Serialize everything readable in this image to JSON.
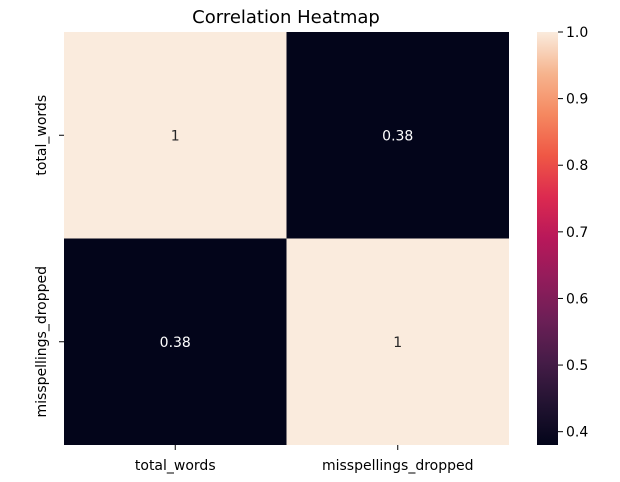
{
  "chart_data": {
    "type": "heatmap",
    "title": "Correlation Heatmap",
    "x_categories": [
      "total_words",
      "misspellings_dropped"
    ],
    "y_categories": [
      "total_words",
      "misspellings_dropped"
    ],
    "values": [
      [
        1,
        0.38
      ],
      [
        0.38,
        1
      ]
    ],
    "annotations": [
      [
        "1",
        "0.38"
      ],
      [
        "0.38",
        "1"
      ]
    ],
    "colorbar": {
      "range": [
        0.38,
        1.0
      ],
      "ticks": [
        0.4,
        0.5,
        0.6,
        0.7,
        0.8,
        0.9,
        1.0
      ],
      "tick_labels": [
        "0.4",
        "0.5",
        "0.6",
        "0.7",
        "0.8",
        "0.9",
        "1.0"
      ],
      "colormap": "rocket",
      "color_low": "#03051a",
      "color_high": "#faebdd"
    },
    "xlabel": "",
    "ylabel": ""
  }
}
